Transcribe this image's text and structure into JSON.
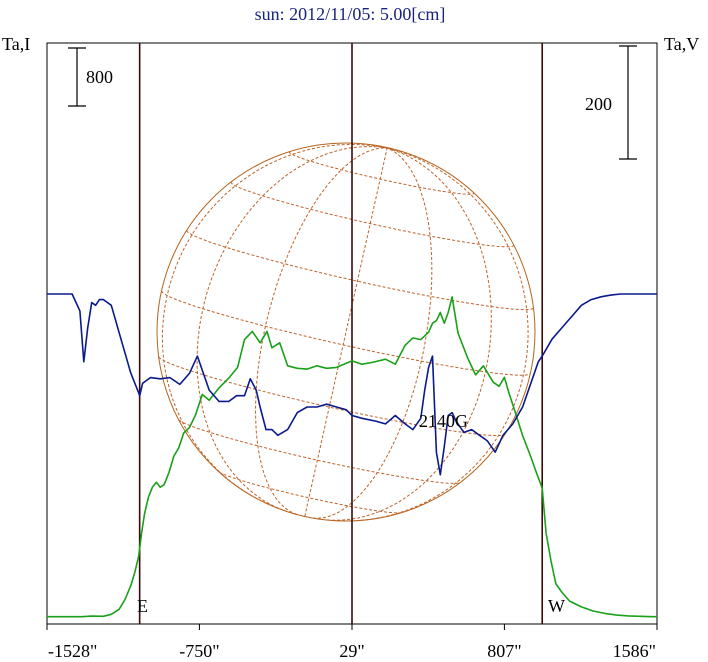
{
  "chart_data": {
    "type": "line",
    "title": "sun: 2012/11/05: 5.00[cm]",
    "y_left_label": "Ta,I",
    "y_right_label": "Ta,V",
    "scale_left": "800",
    "scale_right": "200",
    "annotation": "2140G",
    "east_label": "E",
    "west_label": "W",
    "x_ticks": [
      "-1528\"",
      "-750\"",
      "29\"",
      "807\"",
      "1586\""
    ],
    "x_tick_values": [
      -1528,
      -750,
      29,
      807,
      1586
    ],
    "xlim": [
      -1528,
      1586
    ],
    "vertical_lines": [
      -1055,
      29,
      1000
    ],
    "series": [
      {
        "color": "#1aa01a",
        "x": [
          -1528,
          -1420,
          -1350,
          -1300,
          -1240,
          -1200,
          -1160,
          -1130,
          -1100,
          -1080,
          -1060,
          -1045,
          -1030,
          -1010,
          -990,
          -970,
          -950,
          -930,
          -905,
          -880,
          -855,
          -830,
          -800,
          -770,
          -735,
          -700,
          -650,
          -600,
          -555,
          -520,
          -480,
          -440,
          -405,
          -380,
          -340,
          -300,
          -250,
          -200,
          -150,
          -100,
          -50,
          0,
          29,
          80,
          130,
          200,
          250,
          300,
          340,
          380,
          420,
          440,
          460,
          480,
          500,
          520,
          540,
          570,
          620,
          660,
          700,
          750,
          780,
          807,
          830,
          860,
          900,
          940,
          970,
          1000,
          1020,
          1045,
          1070,
          1100,
          1140,
          1200,
          1260,
          1320,
          1380,
          1440,
          1500,
          1560,
          1586
        ],
        "y": [
          40,
          40,
          40,
          48,
          45,
          70,
          130,
          250,
          420,
          580,
          780,
          1060,
          1300,
          1500,
          1620,
          1680,
          1620,
          1650,
          1800,
          2000,
          2100,
          2280,
          2350,
          2500,
          2750,
          2680,
          2830,
          2950,
          3080,
          3420,
          3520,
          3380,
          3520,
          3320,
          3380,
          3100,
          3070,
          3060,
          3100,
          3070,
          3080,
          3130,
          3160,
          3120,
          3140,
          3180,
          3120,
          3350,
          3440,
          3420,
          3510,
          3620,
          3650,
          3750,
          3620,
          3750,
          3940,
          3500,
          3190,
          2990,
          3100,
          2900,
          2850,
          2960,
          2770,
          2550,
          2250,
          2000,
          1800,
          1610,
          1060,
          720,
          440,
          340,
          230,
          160,
          110,
          80,
          60,
          50,
          45,
          40,
          40
        ]
      },
      {
        "color": "#0a1a8c",
        "x": [
          -1528,
          -1400,
          -1360,
          -1340,
          -1320,
          -1300,
          -1280,
          -1260,
          -1240,
          -1200,
          -1150,
          -1100,
          -1060,
          -1055,
          -1040,
          -1000,
          -950,
          -900,
          -850,
          -800,
          -760,
          -700,
          -650,
          -600,
          -560,
          -520,
          -490,
          -460,
          -440,
          -410,
          -380,
          -350,
          -300,
          -250,
          -200,
          -150,
          -100,
          -50,
          0,
          29,
          80,
          150,
          200,
          250,
          300,
          340,
          380,
          400,
          420,
          440,
          460,
          480,
          500,
          520,
          540,
          560,
          600,
          640,
          680,
          720,
          760,
          800,
          850,
          900,
          950,
          980,
          1000,
          1050,
          1100,
          1150,
          1200,
          1250,
          1300,
          1350,
          1400,
          1500,
          1586
        ],
        "y": [
          0,
          0,
          -30,
          -120,
          -60,
          -15,
          -20,
          -10,
          -10,
          -20,
          -80,
          -140,
          -175,
          -180,
          -158,
          -148,
          -150,
          -148,
          -160,
          -140,
          -110,
          -170,
          -190,
          -190,
          -180,
          -180,
          -150,
          -170,
          -200,
          -240,
          -240,
          -250,
          -240,
          -210,
          -200,
          -200,
          -195,
          -200,
          -205,
          -215,
          -220,
          -225,
          -230,
          -215,
          -230,
          -240,
          -220,
          -170,
          -130,
          -110,
          -280,
          -320,
          -270,
          -215,
          -210,
          -225,
          -245,
          -240,
          -250,
          -260,
          -280,
          -250,
          -230,
          -200,
          -150,
          -120,
          -110,
          -80,
          -60,
          -40,
          -20,
          -10,
          -5,
          -2,
          0,
          0,
          0
        ]
      }
    ]
  }
}
